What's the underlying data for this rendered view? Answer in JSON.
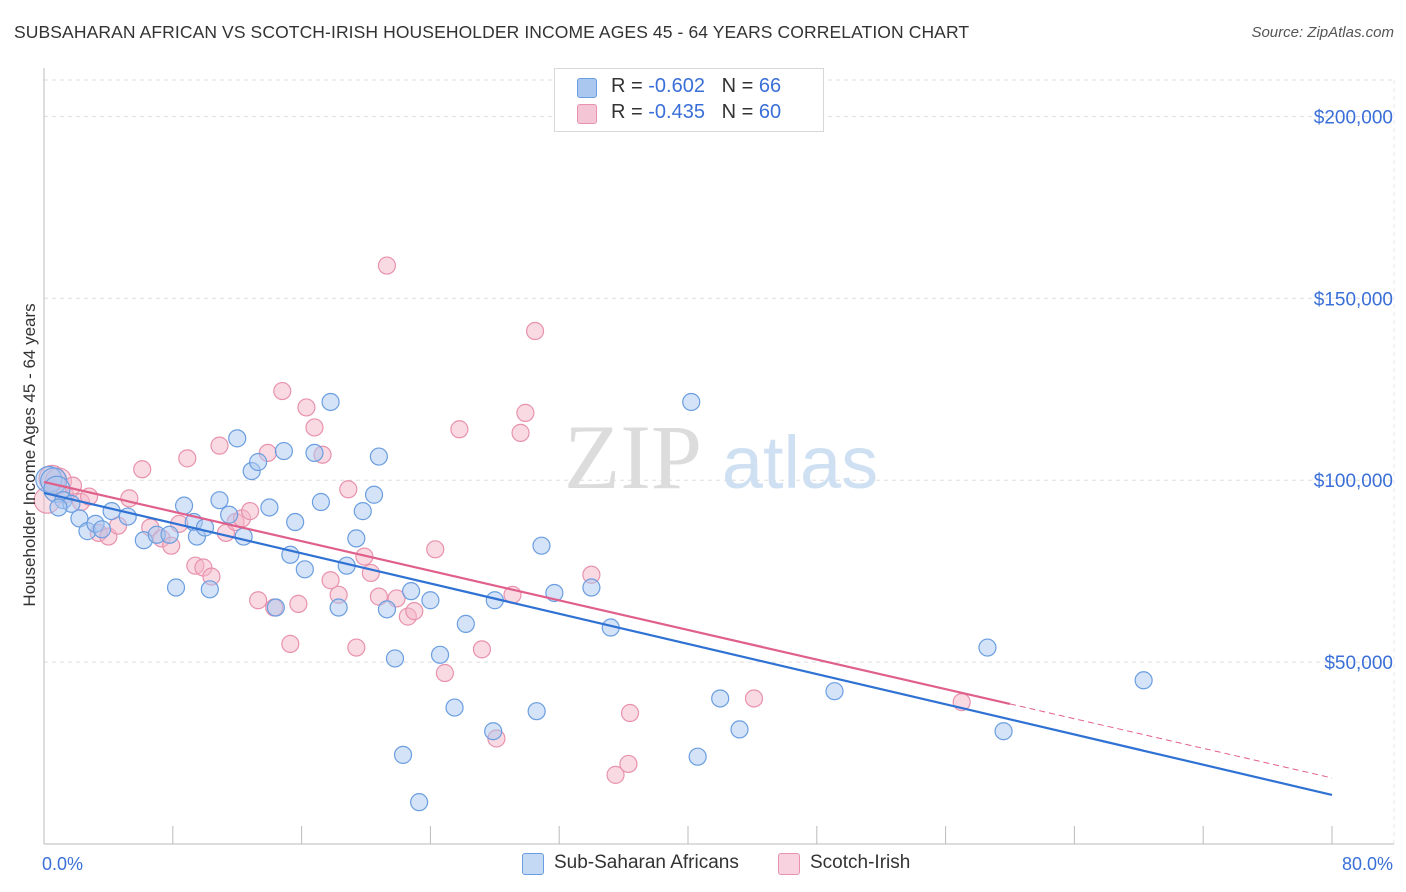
{
  "header": {
    "title": "SUBSAHARAN AFRICAN VS SCOTCH-IRISH HOUSEHOLDER INCOME AGES 45 - 64 YEARS CORRELATION CHART",
    "source": "Source: ZipAtlas.com"
  },
  "watermark": {
    "zip": "ZIP",
    "atlas": "atlas"
  },
  "legend": {
    "r_label": "R = ",
    "n_label": "N = ",
    "series1": {
      "r": "-0.602",
      "n": "66"
    },
    "series2": {
      "r": "-0.435",
      "n": "60"
    }
  },
  "colors": {
    "blue_fill": "#aac8ef",
    "blue_stroke": "#6b9ee0",
    "blue_line": "#2f72d3",
    "pink_fill": "#f4b6c8",
    "pink_stroke": "#e892ad",
    "pink_line": "#e0608c",
    "axis_text": "#3a6fd8"
  },
  "chart_data": {
    "type": "scatter",
    "title": "SUBSAHARAN AFRICAN VS SCOTCH-IRISH HOUSEHOLDER INCOME AGES 45 - 64 YEARS CORRELATION CHART",
    "xlabel": "",
    "ylabel": "Householder Income Ages 45 - 64 years",
    "xlim": [
      0,
      80
    ],
    "ylim": [
      0,
      210000
    ],
    "x_tick_labels": [
      "0.0%",
      "80.0%"
    ],
    "y_ticks": [
      50000,
      100000,
      150000,
      200000
    ],
    "y_tick_labels": [
      "$50,000",
      "$100,000",
      "$150,000",
      "$200,000"
    ],
    "grid": true,
    "legend_position": "top-center",
    "series": [
      {
        "name": "Sub-Saharan Africans",
        "r": -0.602,
        "n": 66,
        "trend": {
          "x": [
            0,
            80
          ],
          "y": [
            96500,
            13500
          ]
        },
        "points": [
          [
            0.3,
            100200
          ],
          [
            0.6,
            99800
          ],
          [
            0.8,
            97500
          ],
          [
            1.2,
            94500
          ],
          [
            1.7,
            93500
          ],
          [
            2.2,
            89500
          ],
          [
            2.7,
            86000
          ],
          [
            3.2,
            88000
          ],
          [
            3.6,
            86500
          ],
          [
            4.2,
            91500
          ],
          [
            5.2,
            90000
          ],
          [
            6.2,
            83500
          ],
          [
            7.0,
            85000
          ],
          [
            7.8,
            85000
          ],
          [
            8.2,
            70500
          ],
          [
            8.7,
            93000
          ],
          [
            9.3,
            88500
          ],
          [
            9.5,
            84500
          ],
          [
            10.0,
            87000
          ],
          [
            10.3,
            70000
          ],
          [
            10.9,
            94500
          ],
          [
            11.5,
            90500
          ],
          [
            12.0,
            111500
          ],
          [
            12.4,
            84500
          ],
          [
            12.9,
            102500
          ],
          [
            13.3,
            105000
          ],
          [
            14.0,
            92500
          ],
          [
            14.4,
            65000
          ],
          [
            14.9,
            108000
          ],
          [
            15.3,
            79500
          ],
          [
            15.6,
            88500
          ],
          [
            16.2,
            75500
          ],
          [
            16.8,
            107500
          ],
          [
            17.2,
            94000
          ],
          [
            17.8,
            121500
          ],
          [
            18.3,
            65000
          ],
          [
            18.8,
            76500
          ],
          [
            19.4,
            84000
          ],
          [
            19.8,
            91500
          ],
          [
            20.5,
            96000
          ],
          [
            20.8,
            106500
          ],
          [
            21.3,
            64500
          ],
          [
            21.8,
            51000
          ],
          [
            22.3,
            24500
          ],
          [
            22.8,
            69500
          ],
          [
            23.3,
            11500
          ],
          [
            24.0,
            67000
          ],
          [
            24.6,
            52000
          ],
          [
            25.5,
            37500
          ],
          [
            26.2,
            60500
          ],
          [
            27.9,
            31000
          ],
          [
            28.0,
            67000
          ],
          [
            30.6,
            36500
          ],
          [
            30.9,
            82000
          ],
          [
            31.7,
            69000
          ],
          [
            34.0,
            70500
          ],
          [
            35.2,
            59500
          ],
          [
            40.2,
            121500
          ],
          [
            40.6,
            24000
          ],
          [
            42.0,
            40000
          ],
          [
            43.2,
            31500
          ],
          [
            49.1,
            42000
          ],
          [
            58.6,
            54000
          ],
          [
            59.6,
            31000
          ],
          [
            68.3,
            45000
          ],
          [
            0.9,
            92500
          ]
        ]
      },
      {
        "name": "Scotch-Irish",
        "r": -0.435,
        "n": 60,
        "trend": {
          "x": [
            0,
            60
          ],
          "y": [
            99500,
            38500
          ]
        },
        "points": [
          [
            0.2,
            94500
          ],
          [
            0.5,
            100500
          ],
          [
            0.9,
            99800
          ],
          [
            1.3,
            96000
          ],
          [
            1.8,
            98500
          ],
          [
            2.3,
            94000
          ],
          [
            2.8,
            95500
          ],
          [
            3.4,
            85500
          ],
          [
            4.0,
            84500
          ],
          [
            4.6,
            87500
          ],
          [
            5.3,
            95000
          ],
          [
            6.1,
            103000
          ],
          [
            6.6,
            87000
          ],
          [
            7.3,
            84000
          ],
          [
            7.9,
            82000
          ],
          [
            8.4,
            88000
          ],
          [
            8.9,
            106000
          ],
          [
            9.4,
            76500
          ],
          [
            9.9,
            76000
          ],
          [
            10.4,
            73500
          ],
          [
            10.9,
            109500
          ],
          [
            11.3,
            85500
          ],
          [
            11.9,
            88500
          ],
          [
            12.3,
            89500
          ],
          [
            12.8,
            91500
          ],
          [
            13.3,
            67000
          ],
          [
            13.9,
            107500
          ],
          [
            14.3,
            65000
          ],
          [
            14.8,
            124500
          ],
          [
            15.3,
            55000
          ],
          [
            15.8,
            66000
          ],
          [
            16.3,
            120000
          ],
          [
            16.8,
            114500
          ],
          [
            17.3,
            107000
          ],
          [
            17.8,
            72500
          ],
          [
            18.3,
            68500
          ],
          [
            18.9,
            97500
          ],
          [
            19.4,
            54000
          ],
          [
            19.9,
            79000
          ],
          [
            20.3,
            74500
          ],
          [
            20.8,
            68000
          ],
          [
            21.3,
            159000
          ],
          [
            21.9,
            67500
          ],
          [
            22.6,
            62500
          ],
          [
            23.0,
            64000
          ],
          [
            24.3,
            81000
          ],
          [
            24.9,
            47000
          ],
          [
            25.8,
            114000
          ],
          [
            27.2,
            53500
          ],
          [
            28.1,
            29000
          ],
          [
            29.1,
            68500
          ],
          [
            29.6,
            113000
          ],
          [
            29.9,
            118500
          ],
          [
            30.5,
            141000
          ],
          [
            34.0,
            74000
          ],
          [
            35.5,
            19000
          ],
          [
            36.3,
            22000
          ],
          [
            36.4,
            36000
          ],
          [
            44.1,
            40000
          ],
          [
            57.0,
            39000
          ]
        ]
      }
    ]
  }
}
